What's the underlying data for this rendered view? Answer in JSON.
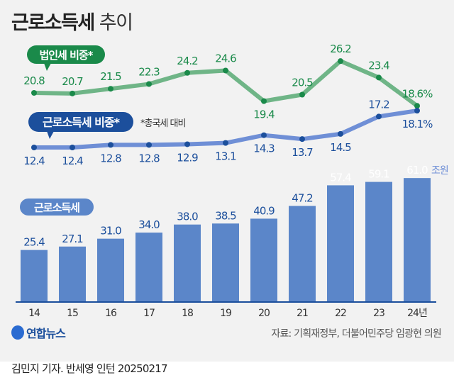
{
  "title_bold": "근로소득세",
  "title_light": "추이",
  "source": "자료: 기획재정부, 더불어민주당 임광현 의원",
  "logo": "연합뉴스",
  "credit": "김민지 기자. 반세영 인턴 20250217",
  "colors": {
    "green": "#6fb587",
    "green_dark": "#1a8a4a",
    "blue_line": "#6f8fd6",
    "blue_dark": "#1c4f9c",
    "bar": "#5b86c9"
  },
  "chart_data": [
    {
      "type": "line",
      "name": "법인세 비중*",
      "x": [
        "14",
        "15",
        "16",
        "17",
        "18",
        "19",
        "20",
        "21",
        "22",
        "23",
        "24년"
      ],
      "values": [
        20.8,
        20.7,
        21.5,
        22.3,
        24.2,
        24.6,
        19.4,
        20.5,
        26.2,
        23.4,
        18.6
      ],
      "last_label": "18.6%"
    },
    {
      "type": "line",
      "name": "근로소득세 비중*",
      "x": [
        "14",
        "15",
        "16",
        "17",
        "18",
        "19",
        "20",
        "21",
        "22",
        "23",
        "24년"
      ],
      "values": [
        12.4,
        12.4,
        12.8,
        12.8,
        12.9,
        13.1,
        14.3,
        13.7,
        14.5,
        17.2,
        18.1
      ],
      "last_label": "18.1%",
      "note": "*총국세 대비"
    },
    {
      "type": "bar",
      "name": "근로소득세",
      "categories": [
        "14",
        "15",
        "16",
        "17",
        "18",
        "19",
        "20",
        "21",
        "22",
        "23",
        "24년"
      ],
      "values": [
        25.4,
        27.1,
        31.0,
        34.0,
        38.0,
        38.5,
        40.9,
        47.2,
        57.4,
        59.1,
        61.0
      ],
      "unit": "조원"
    }
  ]
}
